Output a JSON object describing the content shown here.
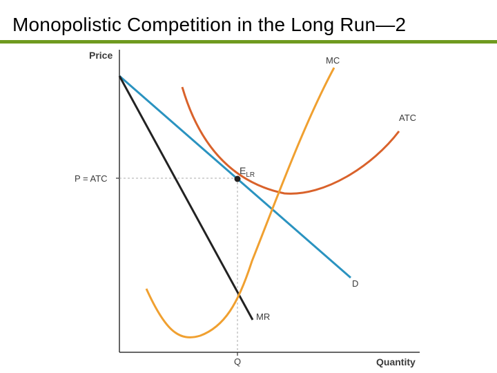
{
  "slide": {
    "title": "Monopolistic Competition in the Long Run—2"
  },
  "axes": {
    "y_label": "Price",
    "x_label": "Quantity",
    "y_tick": "P = ATC",
    "x_tick": "Q"
  },
  "curves": {
    "mc": "MC",
    "atc": "ATC",
    "demand": "D",
    "mr": "MR"
  },
  "equilibrium": {
    "label_main": "E",
    "label_sub": "LR"
  },
  "colors": {
    "title_rule": "#6f9a1f",
    "mc": "#f0a030",
    "atc": "#d9622b",
    "demand": "#2a93c0",
    "mr": "#222222",
    "axis": "#333333",
    "guide": "#aaaaaa"
  }
}
